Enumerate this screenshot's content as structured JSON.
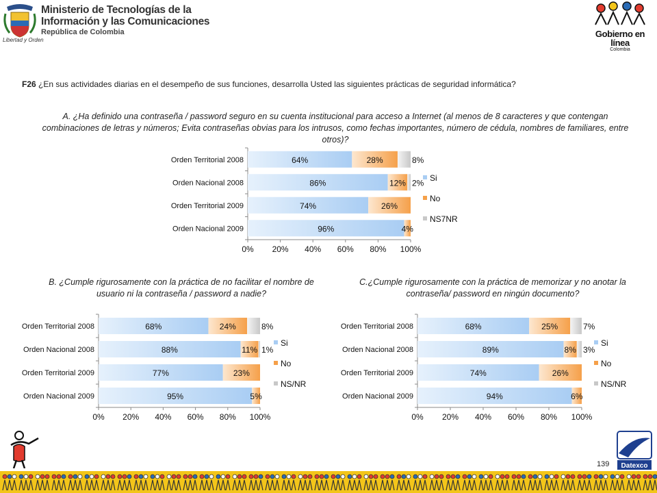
{
  "header": {
    "ministry_line1": "Ministerio de Tecnologías de la",
    "ministry_line2": "Información y las Comunicaciones",
    "ministry_sub": "República de Colombia",
    "motto": "Libertad y Orden",
    "gov_line1": "Gobierno en línea",
    "gov_line2": "Colombia"
  },
  "question": {
    "code": "F26",
    "text": " ¿En sus actividades diarias en el desempeño de sus funciones, desarrolla Usted las siguientes prácticas de seguridad informática?"
  },
  "colors": {
    "si": "#a9cdf3",
    "no": "#f5a04a",
    "nsnr": "#c8c8c8"
  },
  "chart_data": [
    {
      "type": "bar",
      "orientation": "horizontal",
      "stacked": true,
      "title": "A. ¿Ha definido una contraseña / password seguro en su cuenta institucional para acceso a Internet (al menos de 8 caracteres y que contengan combinaciones de letras y números; Evita contraseñas obvias para los intrusos, como fechas importantes, número de cédula, nombres de familiares, entre otros)?",
      "categories": [
        "Orden Territorial 2008",
        "Orden Nacional 2008",
        "Orden Territorial 2009",
        "Orden Nacional 2009"
      ],
      "series": [
        {
          "name": "Si",
          "values": [
            64,
            86,
            74,
            96
          ],
          "labels": [
            "64%",
            "86%",
            "74%",
            "96%"
          ]
        },
        {
          "name": "No",
          "values": [
            28,
            12,
            26,
            4
          ],
          "labels": [
            "28%",
            "12%",
            "26%",
            "4%"
          ]
        },
        {
          "name": "NS7NR",
          "values": [
            8,
            2,
            0,
            0
          ],
          "labels": [
            "8%",
            "2%",
            "",
            ""
          ]
        }
      ],
      "xlim": [
        0,
        100
      ],
      "xticks": [
        "0%",
        "20%",
        "40%",
        "60%",
        "80%",
        "100%"
      ],
      "legend": "right"
    },
    {
      "type": "bar",
      "orientation": "horizontal",
      "stacked": true,
      "title": "B. ¿Cumple rigurosamente con la práctica de  no facilitar el nombre de usuario ni la contraseña / password a nadie?",
      "categories": [
        "Orden Territorial 2008",
        "Orden Nacional 2008",
        "Orden Territorial 2009",
        "Orden Nacional 2009"
      ],
      "series": [
        {
          "name": "Si",
          "values": [
            68,
            88,
            77,
            95
          ],
          "labels": [
            "68%",
            "88%",
            "77%",
            "95%"
          ]
        },
        {
          "name": "No",
          "values": [
            24,
            11,
            23,
            5
          ],
          "labels": [
            "24%",
            "11%",
            "23%",
            "5%"
          ]
        },
        {
          "name": "NS/NR",
          "values": [
            8,
            1,
            0,
            0
          ],
          "labels": [
            "8%",
            "1%",
            "",
            ""
          ]
        }
      ],
      "xlim": [
        0,
        100
      ],
      "xticks": [
        "0%",
        "20%",
        "40%",
        "60%",
        "80%",
        "100%"
      ],
      "legend": "right"
    },
    {
      "type": "bar",
      "orientation": "horizontal",
      "stacked": true,
      "title": "C.¿Cumple rigurosamente con la práctica de memorizar y no anotar la contraseña/  password en ningún documento?",
      "categories": [
        "Orden Territorial 2008",
        "Orden Nacional 2008",
        "Orden Territorial 2009",
        "Orden Nacional 2009"
      ],
      "series": [
        {
          "name": "Si",
          "values": [
            68,
            89,
            74,
            94
          ],
          "labels": [
            "68%",
            "89%",
            "74%",
            "94%"
          ]
        },
        {
          "name": "No",
          "values": [
            25,
            8,
            26,
            6
          ],
          "labels": [
            "25%",
            "8%",
            "26%",
            "6%"
          ]
        },
        {
          "name": "NS/NR",
          "values": [
            7,
            3,
            0,
            0
          ],
          "labels": [
            "7%",
            "3%",
            "",
            ""
          ]
        }
      ],
      "xlim": [
        0,
        100
      ],
      "xticks": [
        "0%",
        "20%",
        "40%",
        "60%",
        "80%",
        "100%"
      ],
      "legend": "right"
    }
  ],
  "footer": {
    "page_number": "139",
    "brand": "Datexco"
  }
}
